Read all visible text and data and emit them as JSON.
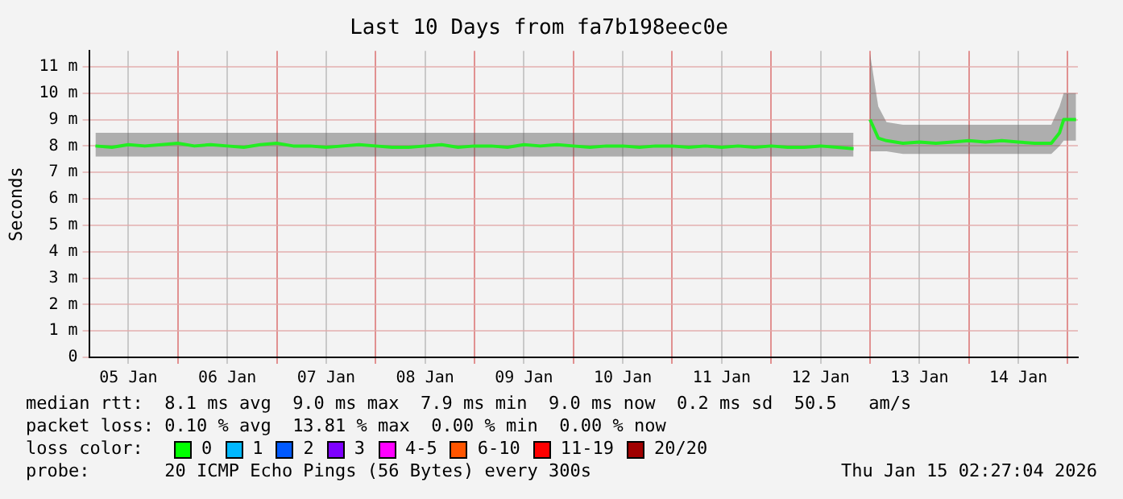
{
  "chart_data": {
    "type": "line",
    "title": "Last 10 Days from fa7b198eec0e",
    "ylabel": "Seconds",
    "x": [
      "2026-01-05T04:00",
      "2026-01-05T08:00",
      "2026-01-05T12:00",
      "2026-01-05T16:00",
      "2026-01-05T20:00",
      "2026-01-06T00:00",
      "2026-01-06T04:00",
      "2026-01-06T08:00",
      "2026-01-06T12:00",
      "2026-01-06T16:00",
      "2026-01-06T20:00",
      "2026-01-07T00:00",
      "2026-01-07T04:00",
      "2026-01-07T08:00",
      "2026-01-07T12:00",
      "2026-01-07T16:00",
      "2026-01-07T20:00",
      "2026-01-08T00:00",
      "2026-01-08T04:00",
      "2026-01-08T08:00",
      "2026-01-08T12:00",
      "2026-01-08T16:00",
      "2026-01-08T20:00",
      "2026-01-09T00:00",
      "2026-01-09T04:00",
      "2026-01-09T08:00",
      "2026-01-09T12:00",
      "2026-01-09T16:00",
      "2026-01-09T20:00",
      "2026-01-10T00:00",
      "2026-01-10T04:00",
      "2026-01-10T08:00",
      "2026-01-10T12:00",
      "2026-01-10T16:00",
      "2026-01-10T20:00",
      "2026-01-11T00:00",
      "2026-01-11T04:00",
      "2026-01-11T08:00",
      "2026-01-11T12:00",
      "2026-01-11T16:00",
      "2026-01-11T20:00",
      "2026-01-12T00:00",
      "2026-01-12T04:00",
      "2026-01-12T08:00",
      "2026-01-12T12:00",
      "2026-01-12T16:00",
      "2026-01-12T20:00",
      "2026-01-12T22:30",
      "2026-01-13T00:00",
      "2026-01-13T02:00",
      "2026-01-13T04:00",
      "2026-01-13T08:00",
      "2026-01-13T12:00",
      "2026-01-13T16:00",
      "2026-01-13T20:00",
      "2026-01-14T00:00",
      "2026-01-14T04:00",
      "2026-01-14T08:00",
      "2026-01-14T12:00",
      "2026-01-14T16:00",
      "2026-01-14T20:00",
      "2026-01-14T22:00",
      "2026-01-14T23:00",
      "2026-01-15T02:00"
    ],
    "series": [
      {
        "color": "#22ee22",
        "values": [
          8.0,
          7.95,
          8.05,
          8.0,
          8.05,
          8.1,
          8.0,
          8.05,
          8.0,
          7.95,
          8.05,
          8.1,
          8.0,
          8.0,
          7.95,
          8.0,
          8.05,
          8.0,
          7.95,
          7.95,
          8.0,
          8.05,
          7.95,
          8.0,
          8.0,
          7.95,
          8.05,
          8.0,
          8.05,
          8.0,
          7.95,
          8.0,
          8.0,
          7.95,
          8.0,
          8.0,
          7.95,
          8.0,
          7.95,
          8.0,
          7.95,
          8.0,
          7.95,
          7.95,
          8.0,
          7.95,
          7.9,
          null,
          9.0,
          8.3,
          8.2,
          8.1,
          8.15,
          8.1,
          8.15,
          8.2,
          8.15,
          8.2,
          8.15,
          8.1,
          8.1,
          8.5,
          9.0,
          9.0
        ],
        "lower": [
          7.6,
          7.6,
          7.6,
          7.6,
          7.6,
          7.6,
          7.6,
          7.6,
          7.6,
          7.6,
          7.6,
          7.6,
          7.6,
          7.6,
          7.6,
          7.6,
          7.6,
          7.6,
          7.6,
          7.6,
          7.6,
          7.6,
          7.6,
          7.6,
          7.6,
          7.6,
          7.6,
          7.6,
          7.6,
          7.6,
          7.6,
          7.6,
          7.6,
          7.6,
          7.6,
          7.6,
          7.6,
          7.6,
          7.6,
          7.6,
          7.6,
          7.6,
          7.6,
          7.6,
          7.6,
          7.6,
          7.6,
          null,
          7.8,
          7.8,
          7.8,
          7.7,
          7.7,
          7.7,
          7.7,
          7.7,
          7.7,
          7.7,
          7.7,
          7.7,
          7.7,
          8.0,
          8.2,
          8.2
        ],
        "upper": [
          8.5,
          8.5,
          8.5,
          8.5,
          8.5,
          8.5,
          8.5,
          8.5,
          8.5,
          8.5,
          8.5,
          8.5,
          8.5,
          8.5,
          8.5,
          8.5,
          8.5,
          8.5,
          8.5,
          8.5,
          8.5,
          8.5,
          8.5,
          8.5,
          8.5,
          8.5,
          8.5,
          8.5,
          8.5,
          8.5,
          8.5,
          8.5,
          8.5,
          8.5,
          8.5,
          8.5,
          8.5,
          8.5,
          8.5,
          8.5,
          8.5,
          8.5,
          8.5,
          8.5,
          8.5,
          8.5,
          8.5,
          null,
          11.5,
          9.5,
          8.9,
          8.8,
          8.8,
          8.8,
          8.8,
          8.8,
          8.8,
          8.8,
          8.8,
          8.8,
          8.8,
          9.5,
          10.0,
          10.0
        ]
      }
    ],
    "xlim": [
      "2026-01-05T02:27",
      "2026-01-15T02:27"
    ],
    "xticks": [
      {
        "value": "2026-01-05T12:00",
        "label": "05 Jan"
      },
      {
        "value": "2026-01-06T00:00",
        "label": null
      },
      {
        "value": "2026-01-06T12:00",
        "label": "06 Jan"
      },
      {
        "value": "2026-01-07T00:00",
        "label": null
      },
      {
        "value": "2026-01-07T12:00",
        "label": "07 Jan"
      },
      {
        "value": "2026-01-08T00:00",
        "label": null
      },
      {
        "value": "2026-01-08T12:00",
        "label": "08 Jan"
      },
      {
        "value": "2026-01-09T00:00",
        "label": null
      },
      {
        "value": "2026-01-09T12:00",
        "label": "09 Jan"
      },
      {
        "value": "2026-01-10T00:00",
        "label": null
      },
      {
        "value": "2026-01-10T12:00",
        "label": "10 Jan"
      },
      {
        "value": "2026-01-11T00:00",
        "label": null
      },
      {
        "value": "2026-01-11T12:00",
        "label": "11 Jan"
      },
      {
        "value": "2026-01-12T00:00",
        "label": null
      },
      {
        "value": "2026-01-12T12:00",
        "label": "12 Jan"
      },
      {
        "value": "2026-01-13T00:00",
        "label": null
      },
      {
        "value": "2026-01-13T12:00",
        "label": "13 Jan"
      },
      {
        "value": "2026-01-14T00:00",
        "label": null
      },
      {
        "value": "2026-01-14T12:00",
        "label": "14 Jan"
      },
      {
        "value": "2026-01-15T00:00",
        "label": null
      }
    ],
    "ylim": [
      0,
      11.6
    ],
    "yticks": [
      0,
      {
        "value": 1,
        "label": "1 m"
      },
      {
        "value": 2,
        "label": "2 m"
      },
      {
        "value": 3,
        "label": "3 m"
      },
      {
        "value": 4,
        "label": "4 m"
      },
      {
        "value": 5,
        "label": "5 m"
      },
      {
        "value": 6,
        "label": "6 m"
      },
      {
        "value": 7,
        "label": "7 m"
      },
      {
        "value": 8,
        "label": "8 m"
      },
      {
        "value": 9,
        "label": "9 m"
      },
      {
        "value": 10,
        "label": "10 m"
      },
      {
        "value": 11,
        "label": "11 m"
      }
    ],
    "grid": true,
    "legend": false,
    "marker": "none",
    "line_style": "solid",
    "annotations": [
      "median rtt:  8.1 ms avg  9.0 ms max  7.9 ms min  9.0 ms now  0.2 ms sd  50.5   am/s",
      "packet loss: 0.10 % avg  13.81 % max  0.00 % min  0.00 % now",
      "loss color:",
      "0",
      "1",
      "2",
      "3",
      "4-5",
      "6-10",
      "11-19",
      "20/20",
      "probe:       20 ICMP Echo Pings (56 Bytes) every 300s",
      "Thu Jan 15 02:27:04 2026"
    ]
  }
}
